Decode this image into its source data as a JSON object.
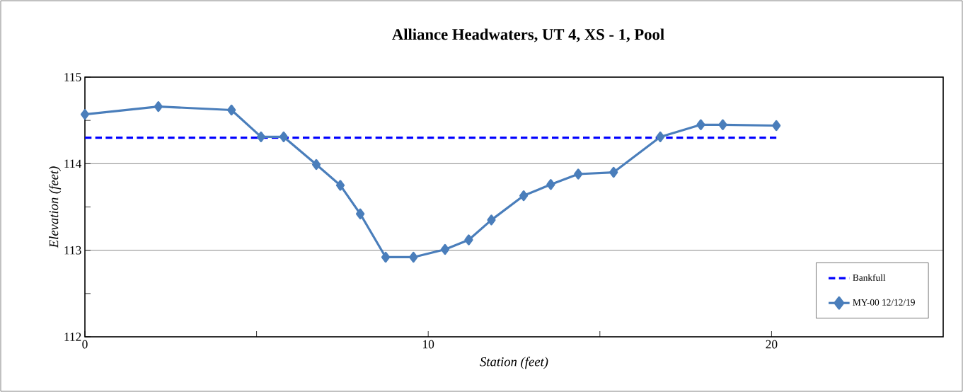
{
  "chart_data": {
    "type": "line",
    "title": "Alliance Headwaters, UT 4, XS - 1, Pool",
    "xlabel": "Station (feet)",
    "ylabel": "Elevation (feet)",
    "xlim": [
      0,
      25
    ],
    "xticks": [
      0,
      {
        "value": 5,
        "label": null
      },
      10,
      {
        "value": 15,
        "label": null
      },
      20
    ],
    "ylim": [
      112,
      115
    ],
    "yticks": [
      112,
      {
        "value": 112.5,
        "label": null
      },
      113,
      {
        "value": 113.5,
        "label": null
      },
      114,
      {
        "value": 114.5,
        "label": null
      },
      115
    ],
    "grid": "y",
    "legend": "bottom right",
    "series": [
      {
        "name": "Bankfull",
        "color": "#0000ff",
        "line_style": "dashed",
        "marker": "none",
        "x": [
          0,
          20.14
        ],
        "values": [
          114.3,
          114.3
        ]
      },
      {
        "name": "MY-00 12/12/19",
        "color": "#4a7ebb",
        "line_style": "solid",
        "marker": "diamond",
        "x": [
          0,
          2.14,
          4.27,
          5.13,
          5.79,
          6.74,
          7.44,
          8.02,
          8.76,
          9.57,
          10.49,
          11.18,
          11.84,
          12.78,
          13.57,
          14.37,
          15.4,
          16.76,
          17.94,
          18.58,
          20.14
        ],
        "values": [
          114.57,
          114.66,
          114.62,
          114.31,
          114.31,
          113.99,
          113.75,
          113.42,
          112.92,
          112.92,
          113.01,
          113.12,
          113.35,
          113.63,
          113.76,
          113.88,
          113.9,
          114.31,
          114.45,
          114.45,
          114.44
        ]
      }
    ]
  }
}
